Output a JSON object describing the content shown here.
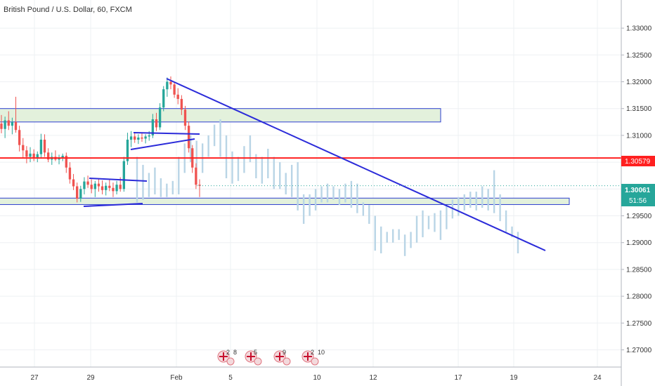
{
  "header": {
    "title": "British Pound / U.S. Dollar, 60, FXCM"
  },
  "chart_data": {
    "type": "candlestick",
    "symbol": "British Pound / U.S. Dollar",
    "interval": "60",
    "source": "FXCM",
    "ylim": [
      1.2685,
      1.3345
    ],
    "y_ticks": [
      "1.33000",
      "1.32500",
      "1.32000",
      "1.31500",
      "1.31000",
      "1.30500",
      "1.30000",
      "1.29500",
      "1.29000",
      "1.28500",
      "1.28000",
      "1.27500",
      "1.27000"
    ],
    "x_ticks": [
      "27",
      "29",
      "Feb",
      "5",
      "10",
      "12",
      "17",
      "19",
      "24"
    ],
    "price_labels": {
      "marked_level": "1.30579",
      "last_price": "1.30061",
      "countdown": "51:56"
    },
    "levels": {
      "marked": 1.30579,
      "last": 1.30061
    },
    "zones": [
      {
        "y_top": 1.315,
        "y_bottom": 1.3125
      },
      {
        "y_top": 1.2983,
        "y_bottom": 1.2971
      }
    ],
    "candles": [
      [
        1.3122,
        1.3138,
        1.3104,
        1.3112
      ],
      [
        1.3112,
        1.3135,
        1.3095,
        1.3128
      ],
      [
        1.3128,
        1.3145,
        1.311,
        1.3118
      ],
      [
        1.3118,
        1.3133,
        1.3102,
        1.3125
      ],
      [
        1.3125,
        1.3172,
        1.3105,
        1.311
      ],
      [
        1.311,
        1.3118,
        1.307,
        1.3082
      ],
      [
        1.3082,
        1.3095,
        1.3058,
        1.3072
      ],
      [
        1.3072,
        1.308,
        1.3048,
        1.306
      ],
      [
        1.306,
        1.3078,
        1.305,
        1.3066
      ],
      [
        1.3066,
        1.3074,
        1.3052,
        1.3058
      ],
      [
        1.3058,
        1.307,
        1.305,
        1.3065
      ],
      [
        1.3065,
        1.3103,
        1.3058,
        1.3092
      ],
      [
        1.3092,
        1.3102,
        1.306,
        1.3068
      ],
      [
        1.3068,
        1.3076,
        1.305,
        1.3055
      ],
      [
        1.3055,
        1.3068,
        1.3045,
        1.306
      ],
      [
        1.306,
        1.3072,
        1.3052,
        1.3055
      ],
      [
        1.3055,
        1.3064,
        1.3046,
        1.3058
      ],
      [
        1.3058,
        1.3066,
        1.3052,
        1.3062
      ],
      [
        1.3062,
        1.3068,
        1.303,
        1.304
      ],
      [
        1.304,
        1.305,
        1.301,
        1.3018
      ],
      [
        1.3018,
        1.3028,
        1.2998,
        1.3005
      ],
      [
        1.3005,
        1.3012,
        1.2975,
        1.2982
      ],
      [
        1.2982,
        1.3006,
        1.2976,
        1.3
      ],
      [
        1.3,
        1.3022,
        1.299,
        1.3014
      ],
      [
        1.3014,
        1.3025,
        1.3002,
        1.3008
      ],
      [
        1.3008,
        1.3018,
        1.2992,
        1.3
      ],
      [
        1.3,
        1.3015,
        1.2985,
        1.301
      ],
      [
        1.301,
        1.302,
        1.2995,
        1.3005
      ],
      [
        1.3005,
        1.3016,
        1.299,
        1.2998
      ],
      [
        1.2998,
        1.3012,
        1.2988,
        1.3006
      ],
      [
        1.3006,
        1.3018,
        1.2996,
        1.3002
      ],
      [
        1.3002,
        1.3012,
        1.2985,
        1.2996
      ],
      [
        1.2996,
        1.3015,
        1.299,
        1.3008
      ],
      [
        1.3008,
        1.3022,
        1.2995,
        1.3
      ],
      [
        1.3,
        1.306,
        1.2995,
        1.3052
      ],
      [
        1.3052,
        1.3105,
        1.3045,
        1.3092
      ],
      [
        1.3092,
        1.3108,
        1.3078,
        1.3098
      ],
      [
        1.3098,
        1.3104,
        1.3086,
        1.3092
      ],
      [
        1.3092,
        1.3102,
        1.3084,
        1.3096
      ],
      [
        1.3096,
        1.3104,
        1.3088,
        1.3094
      ],
      [
        1.3094,
        1.3102,
        1.3085,
        1.3098
      ],
      [
        1.3098,
        1.3108,
        1.309,
        1.31
      ],
      [
        1.31,
        1.314,
        1.3095,
        1.313
      ],
      [
        1.313,
        1.3142,
        1.3108,
        1.3115
      ],
      [
        1.3115,
        1.316,
        1.311,
        1.3152
      ],
      [
        1.3152,
        1.3192,
        1.3145,
        1.3186
      ],
      [
        1.3186,
        1.3208,
        1.3172,
        1.32
      ],
      [
        1.32,
        1.321,
        1.3186,
        1.3195
      ],
      [
        1.3195,
        1.32,
        1.317,
        1.3176
      ],
      [
        1.3176,
        1.3188,
        1.3158,
        1.3168
      ],
      [
        1.3168,
        1.3175,
        1.3138,
        1.3148
      ],
      [
        1.3148,
        1.3155,
        1.311,
        1.3118
      ],
      [
        1.3118,
        1.3126,
        1.3068,
        1.3076
      ],
      [
        1.3076,
        1.3082,
        1.303,
        1.304
      ],
      [
        1.304,
        1.3048,
        1.3,
        1.3008
      ],
      [
        1.3008,
        1.3018,
        1.2985,
        1.3006
      ]
    ],
    "projection": [
      [
        1.306,
        1.2975
      ],
      [
        1.3045,
        1.298
      ],
      [
        1.303,
        1.2985
      ],
      [
        1.304,
        1.299
      ],
      [
        1.302,
        1.2985
      ],
      [
        1.301,
        1.2985
      ],
      [
        1.3015,
        1.299
      ],
      [
        1.306,
        1.299
      ],
      [
        1.3085,
        1.303
      ],
      [
        1.31,
        1.305
      ],
      [
        1.309,
        1.304
      ],
      [
        1.3085,
        1.303
      ],
      [
        1.31,
        1.306
      ],
      [
        1.312,
        1.308
      ],
      [
        1.313,
        1.306
      ],
      [
        1.31,
        1.302
      ],
      [
        1.307,
        1.301
      ],
      [
        1.306,
        1.3015
      ],
      [
        1.308,
        1.303
      ],
      [
        1.31,
        1.305
      ],
      [
        1.3065,
        1.302
      ],
      [
        1.306,
        1.301
      ],
      [
        1.3075,
        1.302
      ],
      [
        1.306,
        1.3
      ],
      [
        1.305,
        1.3
      ],
      [
        1.303,
        1.299
      ],
      [
        1.3045,
        1.2985
      ],
      [
        1.305,
        1.296
      ],
      [
        1.299,
        1.2935
      ],
      [
        1.299,
        1.295
      ],
      [
        1.3,
        1.296
      ],
      [
        1.3005,
        1.2975
      ],
      [
        1.301,
        1.2975
      ],
      [
        1.3005,
        1.298
      ],
      [
        1.3,
        1.297
      ],
      [
        1.301,
        1.2975
      ],
      [
        1.3015,
        1.2965
      ],
      [
        1.301,
        1.2955
      ],
      [
        1.2975,
        1.295
      ],
      [
        1.297,
        1.2935
      ],
      [
        1.295,
        1.2885
      ],
      [
        1.293,
        1.288
      ],
      [
        1.292,
        1.29
      ],
      [
        1.2925,
        1.29
      ],
      [
        1.2925,
        1.2905
      ],
      [
        1.2915,
        1.2875
      ],
      [
        1.292,
        1.289
      ],
      [
        1.295,
        1.29
      ],
      [
        1.296,
        1.291
      ],
      [
        1.295,
        1.2925
      ],
      [
        1.2955,
        1.292
      ],
      [
        1.296,
        1.2905
      ],
      [
        1.297,
        1.2925
      ],
      [
        1.298,
        1.2945
      ],
      [
        1.2985,
        1.295
      ],
      [
        1.299,
        1.296
      ],
      [
        1.2995,
        1.2965
      ],
      [
        1.2995,
        1.296
      ],
      [
        1.3005,
        1.2965
      ],
      [
        1.3,
        1.296
      ],
      [
        1.3035,
        1.2955
      ],
      [
        1.299,
        1.294
      ],
      [
        1.296,
        1.292
      ],
      [
        1.293,
        1.291
      ],
      [
        1.292,
        1.288
      ]
    ],
    "event_markers": [
      "2",
      "8",
      "5",
      "9",
      "2",
      "10"
    ],
    "colors": {
      "up": "#26a69a",
      "down": "#ef5350",
      "projection": "#b9d5e6",
      "trendline": "#2b2bd9",
      "marked_level": "#ff2020",
      "zone_fill": "#e3f1dc",
      "zone_border": "#2d3fd0",
      "last_price_bg": "#26a69a",
      "grid": "#eef0f3"
    }
  }
}
